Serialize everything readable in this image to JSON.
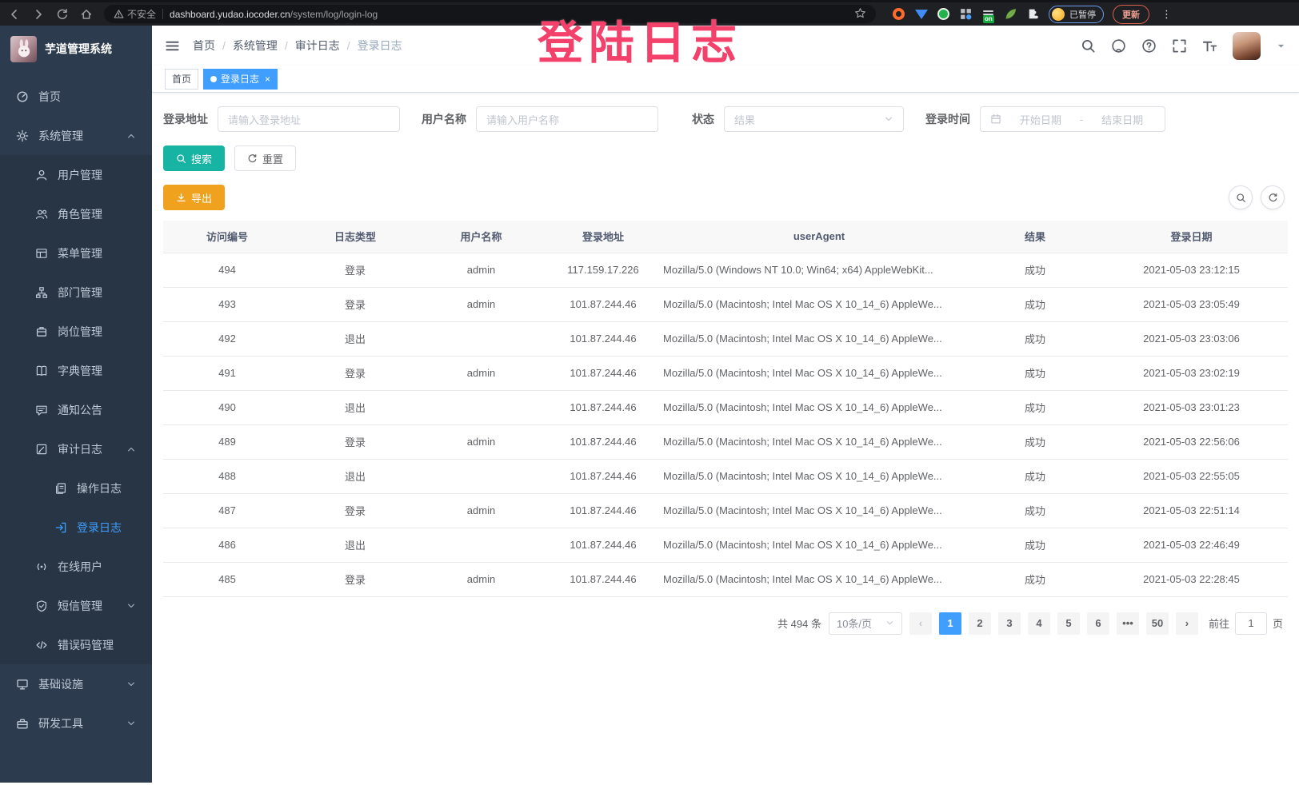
{
  "browser": {
    "security_label": "不安全",
    "url_domain": "dashboard.yudao.iocoder.cn",
    "url_path": "/system/log/login-log",
    "extension_badge": "on",
    "profile_paused": "已暂停",
    "update_button": "更新",
    "kebab": "⋮"
  },
  "watermark": "登陆日志",
  "sidebar": {
    "logo_title": "芋道管理系统",
    "items": [
      {
        "label": "首页",
        "icon": "i-dashboard",
        "level": 0
      },
      {
        "label": "系统管理",
        "icon": "i-gear",
        "level": 0,
        "chevron": "up"
      },
      {
        "label": "用户管理",
        "icon": "i-user",
        "level": 1
      },
      {
        "label": "角色管理",
        "icon": "i-peoples",
        "level": 1
      },
      {
        "label": "菜单管理",
        "icon": "i-menulist",
        "level": 1
      },
      {
        "label": "部门管理",
        "icon": "i-tree",
        "level": 1
      },
      {
        "label": "岗位管理",
        "icon": "i-badge",
        "level": 1
      },
      {
        "label": "字典管理",
        "icon": "i-book",
        "level": 1
      },
      {
        "label": "通知公告",
        "icon": "i-message",
        "level": 1
      },
      {
        "label": "审计日志",
        "icon": "i-editlog",
        "level": 1,
        "chevron": "up"
      },
      {
        "label": "操作日志",
        "icon": "i-doclog",
        "level": 2
      },
      {
        "label": "登录日志",
        "icon": "i-loginlog",
        "level": 2,
        "active": true
      },
      {
        "label": "在线用户",
        "icon": "i-online",
        "level": 1
      },
      {
        "label": "短信管理",
        "icon": "i-shield",
        "level": 1,
        "chevron": "down"
      },
      {
        "label": "错误码管理",
        "icon": "i-code",
        "level": 1
      },
      {
        "label": "基础设施",
        "icon": "i-infra",
        "level": 0,
        "chevron": "down"
      },
      {
        "label": "研发工具",
        "icon": "i-tool",
        "level": 0,
        "chevron": "down"
      }
    ]
  },
  "breadcrumb": [
    "首页",
    "系统管理",
    "审计日志",
    "登录日志"
  ],
  "tags": [
    {
      "label": "首页",
      "active": false
    },
    {
      "label": "登录日志",
      "active": true,
      "closable": true
    }
  ],
  "filters": {
    "address_label": "登录地址",
    "address_placeholder": "请输入登录地址",
    "username_label": "用户名称",
    "username_placeholder": "请输入用户名称",
    "status_label": "状态",
    "status_placeholder": "结果",
    "time_label": "登录时间",
    "date_start_placeholder": "开始日期",
    "date_separator": "-",
    "date_end_placeholder": "结束日期",
    "search_button": "搜索",
    "reset_button": "重置",
    "export_button": "导出"
  },
  "table": {
    "headers": [
      "访问编号",
      "日志类型",
      "用户名称",
      "登录地址",
      "userAgent",
      "结果",
      "登录日期"
    ],
    "rows": [
      [
        "494",
        "登录",
        "admin",
        "117.159.17.226",
        "Mozilla/5.0 (Windows NT 10.0; Win64; x64) AppleWebKit...",
        "成功",
        "2021-05-03 23:12:15"
      ],
      [
        "493",
        "登录",
        "admin",
        "101.87.244.46",
        "Mozilla/5.0 (Macintosh; Intel Mac OS X 10_14_6) AppleWe...",
        "成功",
        "2021-05-03 23:05:49"
      ],
      [
        "492",
        "退出",
        "",
        "101.87.244.46",
        "Mozilla/5.0 (Macintosh; Intel Mac OS X 10_14_6) AppleWe...",
        "成功",
        "2021-05-03 23:03:06"
      ],
      [
        "491",
        "登录",
        "admin",
        "101.87.244.46",
        "Mozilla/5.0 (Macintosh; Intel Mac OS X 10_14_6) AppleWe...",
        "成功",
        "2021-05-03 23:02:19"
      ],
      [
        "490",
        "退出",
        "",
        "101.87.244.46",
        "Mozilla/5.0 (Macintosh; Intel Mac OS X 10_14_6) AppleWe...",
        "成功",
        "2021-05-03 23:01:23"
      ],
      [
        "489",
        "登录",
        "admin",
        "101.87.244.46",
        "Mozilla/5.0 (Macintosh; Intel Mac OS X 10_14_6) AppleWe...",
        "成功",
        "2021-05-03 22:56:06"
      ],
      [
        "488",
        "退出",
        "",
        "101.87.244.46",
        "Mozilla/5.0 (Macintosh; Intel Mac OS X 10_14_6) AppleWe...",
        "成功",
        "2021-05-03 22:55:05"
      ],
      [
        "487",
        "登录",
        "admin",
        "101.87.244.46",
        "Mozilla/5.0 (Macintosh; Intel Mac OS X 10_14_6) AppleWe...",
        "成功",
        "2021-05-03 22:51:14"
      ],
      [
        "486",
        "退出",
        "",
        "101.87.244.46",
        "Mozilla/5.0 (Macintosh; Intel Mac OS X 10_14_6) AppleWe...",
        "成功",
        "2021-05-03 22:46:49"
      ],
      [
        "485",
        "登录",
        "admin",
        "101.87.244.46",
        "Mozilla/5.0 (Macintosh; Intel Mac OS X 10_14_6) AppleWe...",
        "成功",
        "2021-05-03 22:28:45"
      ]
    ]
  },
  "pagination": {
    "total": "共 494 条",
    "page_size": "10条/页",
    "prev": "‹",
    "next": "›",
    "pages": [
      "1",
      "2",
      "3",
      "4",
      "5",
      "6",
      "•••",
      "50"
    ],
    "active_page": "1",
    "goto_label": "前往",
    "goto_value": "1",
    "page_suffix": "页"
  }
}
